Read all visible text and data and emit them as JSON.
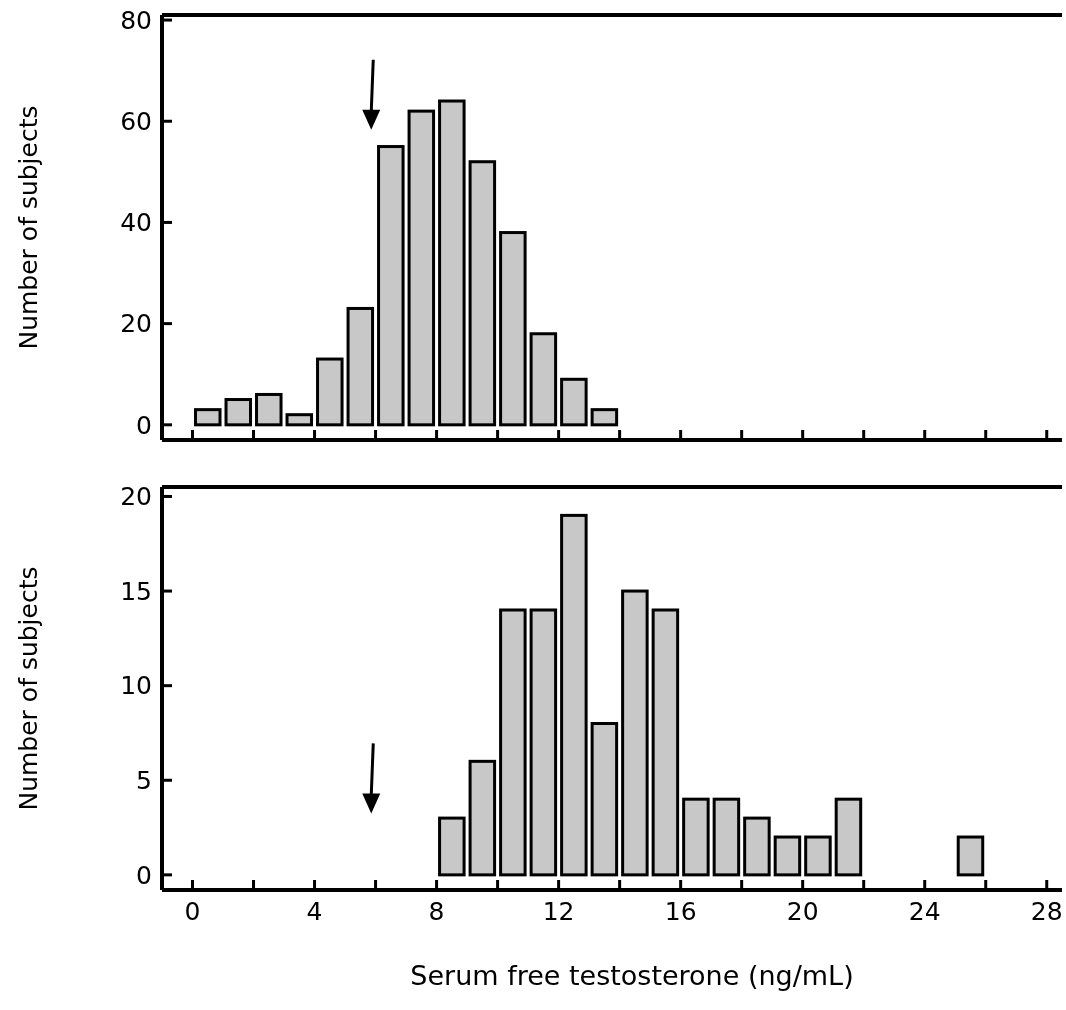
{
  "chart_data": [
    {
      "type": "histogram",
      "ylabel": "Number of subjects",
      "bins": [
        0,
        1,
        2,
        3,
        4,
        5,
        6,
        7,
        8,
        9,
        10,
        11,
        12,
        13,
        14
      ],
      "values": [
        3,
        5,
        6,
        2,
        13,
        23,
        55,
        62,
        64,
        52,
        38,
        18,
        9,
        3
      ],
      "color": "#c8c8c8",
      "xlim": [
        -1,
        28.5
      ],
      "xticks": [
        0,
        {
          "value": 2,
          "label": null
        },
        4,
        {
          "value": 6,
          "label": null
        },
        8,
        {
          "value": 10,
          "label": null
        },
        12,
        {
          "value": 14,
          "label": null
        },
        16,
        {
          "value": 18,
          "label": null
        },
        20,
        {
          "value": 22,
          "label": null
        },
        24,
        {
          "value": 26,
          "label": null
        },
        28
      ],
      "ylim": [
        -3,
        81
      ],
      "yticks": [
        0,
        20,
        40,
        60,
        80
      ],
      "tick_labels": "y"
    },
    {
      "type": "histogram",
      "xlabel": "Serum free testosterone (ng/mL)",
      "ylabel": "Number of subjects",
      "bins": [
        8,
        9,
        10,
        11,
        12,
        13,
        14,
        15,
        16,
        17,
        18,
        19,
        20,
        21,
        22,
        23,
        24,
        25,
        26
      ],
      "values": [
        3,
        6,
        14,
        14,
        19,
        8,
        15,
        14,
        4,
        4,
        3,
        2,
        2,
        4,
        0,
        0,
        0,
        2
      ],
      "color": "#c8c8c8",
      "xlim": [
        -1,
        28.5
      ],
      "xticks": [
        0,
        {
          "value": 2,
          "label": null
        },
        4,
        {
          "value": 6,
          "label": null
        },
        8,
        {
          "value": 10,
          "label": null
        },
        12,
        {
          "value": 14,
          "label": null
        },
        16,
        {
          "value": 18,
          "label": null
        },
        20,
        {
          "value": 22,
          "label": null
        },
        24,
        {
          "value": 26,
          "label": null
        },
        28
      ],
      "ylim": [
        -0.8,
        20.5
      ],
      "yticks": [
        0,
        5,
        10,
        15,
        20
      ]
    }
  ]
}
